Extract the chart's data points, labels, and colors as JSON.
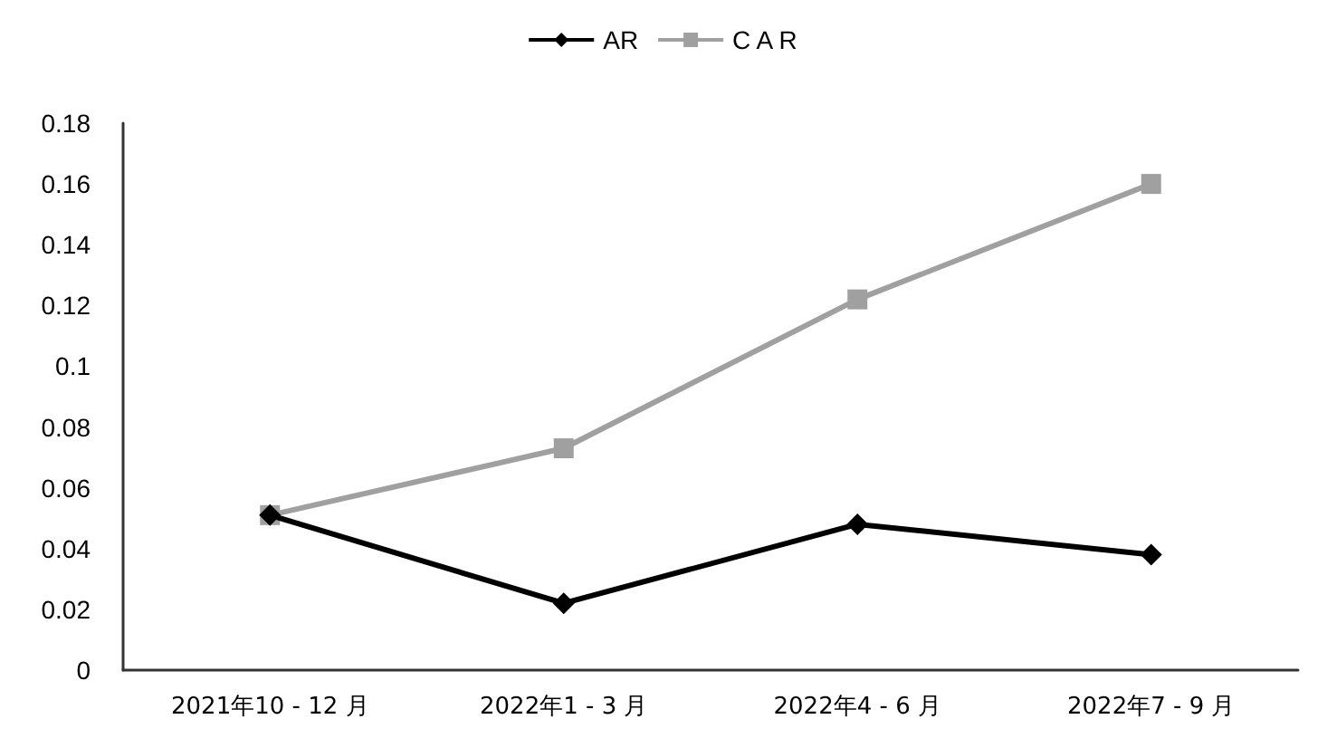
{
  "chart_data": {
    "type": "line",
    "categories": [
      "2021年10 - 12 月",
      "2022年1 - 3 月",
      "2022年4 - 6 月",
      "2022年7 - 9 月"
    ],
    "series": [
      {
        "name": "AR",
        "color": "#000000",
        "marker": "diamond",
        "values": [
          0.051,
          0.022,
          0.048,
          0.038
        ]
      },
      {
        "name": "C A R",
        "color": "#a0a0a0",
        "marker": "square",
        "values": [
          0.051,
          0.073,
          0.122,
          0.16
        ]
      }
    ],
    "ylim": [
      0,
      0.18
    ],
    "yticks": [
      0,
      0.02,
      0.04,
      0.06,
      0.08,
      0.1,
      0.12,
      0.14,
      0.16,
      0.18
    ],
    "grid": false,
    "legend": "top",
    "line_style": "solid"
  }
}
